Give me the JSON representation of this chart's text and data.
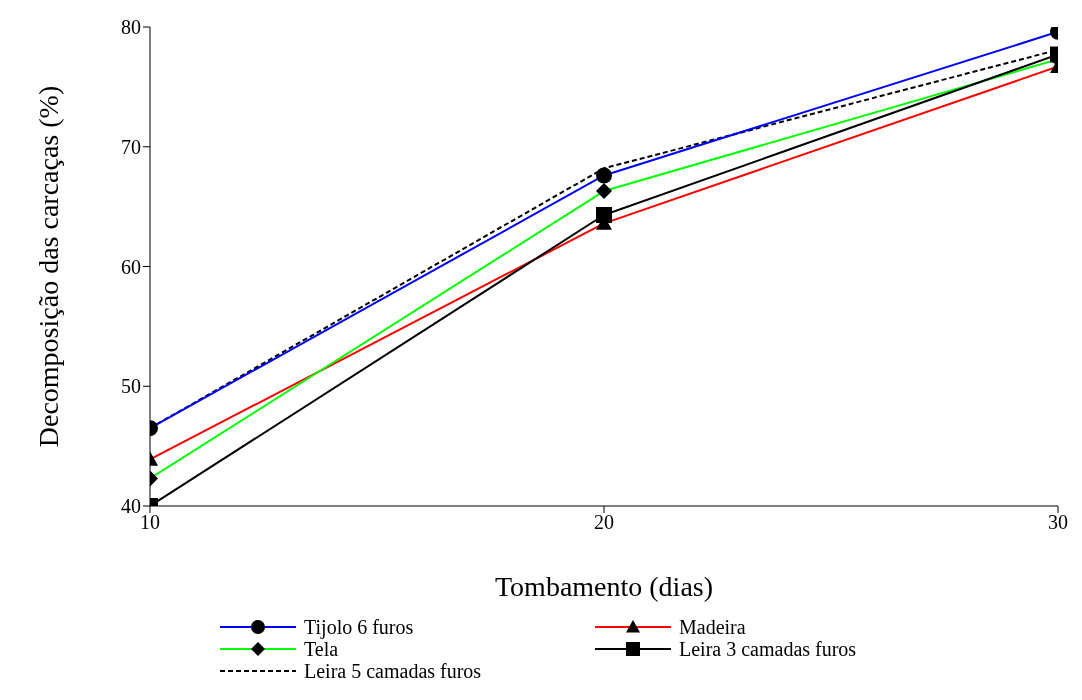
{
  "chart_data": {
    "type": "line",
    "xlabel": "Tombamento  (dias)",
    "ylabel": "Decomposição  das carcaças (%)",
    "x": [
      10,
      20,
      30
    ],
    "xlim": [
      10,
      30
    ],
    "xticks": [
      10,
      20,
      30
    ],
    "ylim": [
      40,
      80
    ],
    "yticks": [
      40,
      50,
      60,
      70,
      80
    ],
    "grid": false,
    "legend": "bottom",
    "series": [
      {
        "name": "Tijolo 6 furos",
        "color": "#0000ff",
        "marker": "circle",
        "line_style": "solid",
        "values": [
          46.5,
          67.6,
          79.6
        ]
      },
      {
        "name": "Madeira",
        "color": "#ff0000",
        "marker": "triangle",
        "line_style": "solid",
        "values": [
          43.9,
          63.6,
          76.7
        ]
      },
      {
        "name": "Tela",
        "color": "#00ff00",
        "marker": "diamond",
        "line_style": "solid",
        "values": [
          42.3,
          66.3,
          77.3
        ]
      },
      {
        "name": "Leira 3 camadas furos",
        "color": "#000000",
        "marker": "square",
        "line_style": "solid",
        "values": [
          40,
          64.3,
          77.7
        ]
      },
      {
        "name": "Leira 5 camadas furos",
        "color": "#000000",
        "marker": "none",
        "line_style": "dashed",
        "values": [
          46.5,
          68.2,
          78.1
        ]
      }
    ]
  }
}
